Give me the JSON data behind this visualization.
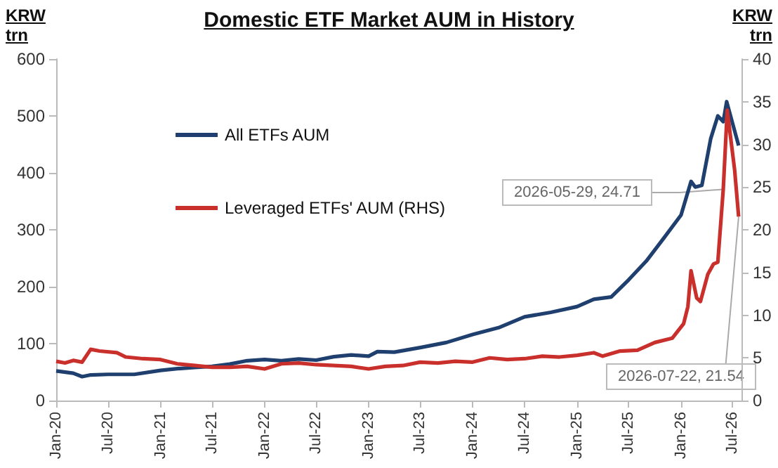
{
  "chart_data": {
    "type": "line",
    "title": "Domestic ETF Market AUM in History",
    "ylabel": "KRW trn",
    "y2label": "KRW trn",
    "xlim": [
      "2020-01-01",
      "2026-08-01"
    ],
    "xticks": [
      {
        "value": "2020-01",
        "label": "Jan-20"
      },
      {
        "value": "2020-07",
        "label": "Jul-20"
      },
      {
        "value": "2021-01",
        "label": "Jan-21"
      },
      {
        "value": "2021-07",
        "label": "Jul-21"
      },
      {
        "value": "2022-01",
        "label": "Jan-22"
      },
      {
        "value": "2022-07",
        "label": "Jul-22"
      },
      {
        "value": "2023-01",
        "label": "Jan-23"
      },
      {
        "value": "2023-07",
        "label": "Jul-23"
      },
      {
        "value": "2024-01",
        "label": "Jan-24"
      },
      {
        "value": "2024-07",
        "label": "Jul-24"
      },
      {
        "value": "2025-01",
        "label": "Jan-25"
      },
      {
        "value": "2025-07",
        "label": "Jul-25"
      },
      {
        "value": "2026-01",
        "label": "Jan-26"
      },
      {
        "value": "2026-07",
        "label": "Jul-26"
      }
    ],
    "ylim": [
      0,
      600
    ],
    "yticks": [
      0,
      100,
      200,
      300,
      400,
      500,
      600
    ],
    "y2lim": [
      0,
      40
    ],
    "y2ticks": [
      0,
      5,
      10,
      15,
      20,
      25,
      30,
      35,
      40
    ],
    "grid": false,
    "legend": "top left",
    "marker": "none",
    "line_style": "solid",
    "series": [
      {
        "name": "All ETFs AUM",
        "color": "#1f3f6e",
        "x": [
          "2020-01",
          "2020-03",
          "2020-04",
          "2020-05",
          "2020-07",
          "2020-10",
          "2021-01",
          "2021-03",
          "2021-05",
          "2021-07",
          "2021-09",
          "2021-11",
          "2022-01",
          "2022-03",
          "2022-05",
          "2022-07",
          "2022-09",
          "2022-11",
          "2023-01",
          "2023-02",
          "2023-04",
          "2023-07",
          "2023-10",
          "2024-01",
          "2024-04",
          "2024-07",
          "2024-10",
          "2025-01",
          "2025-03",
          "2025-05",
          "2025-07",
          "2025-09",
          "2025-11",
          "2026-01",
          "2026-02-05",
          "2026-02-20",
          "2026-03-15",
          "2026-04-15",
          "2026-05-10",
          "2026-05-29",
          "2026-06-10",
          "2026-07-22"
        ],
        "values": [
          52,
          48,
          42,
          45,
          46,
          46,
          53,
          56,
          58,
          60,
          64,
          70,
          72,
          70,
          73,
          71,
          77,
          80,
          78,
          86,
          85,
          93,
          102,
          116,
          128,
          147,
          155,
          165,
          178,
          182,
          212,
          245,
          285,
          326,
          385,
          375,
          378,
          460,
          500,
          490,
          525,
          448
        ]
      },
      {
        "name": "Leveraged ETFs' AUM (RHS)",
        "color": "#c9302c",
        "axis": "y2",
        "x": [
          "2020-01",
          "2020-02",
          "2020-03",
          "2020-04",
          "2020-05",
          "2020-06",
          "2020-08",
          "2020-09",
          "2020-11",
          "2021-01",
          "2021-03",
          "2021-05",
          "2021-07",
          "2021-09",
          "2021-11",
          "2022-01",
          "2022-03",
          "2022-05",
          "2022-07",
          "2022-09",
          "2022-11",
          "2023-01",
          "2023-03",
          "2023-05",
          "2023-07",
          "2023-09",
          "2023-11",
          "2024-01",
          "2024-03",
          "2024-05",
          "2024-07",
          "2024-09",
          "2024-11",
          "2025-01",
          "2025-03",
          "2025-04",
          "2025-06",
          "2025-08",
          "2025-10",
          "2025-12",
          "2026-01-10",
          "2026-01-25",
          "2026-02-05",
          "2026-02-25",
          "2026-03-10",
          "2026-04-05",
          "2026-04-25",
          "2026-05-10",
          "2026-05-29",
          "2026-06-12",
          "2026-06-25",
          "2026-07-08",
          "2026-07-22"
        ],
        "values": [
          4.6,
          4.4,
          4.7,
          4.5,
          6.0,
          5.8,
          5.6,
          5.1,
          4.9,
          4.8,
          4.3,
          4.1,
          3.9,
          3.9,
          4.0,
          3.7,
          4.3,
          4.4,
          4.2,
          4.1,
          4.0,
          3.7,
          4.0,
          4.1,
          4.5,
          4.4,
          4.6,
          4.5,
          5.0,
          4.8,
          4.9,
          5.2,
          5.1,
          5.3,
          5.6,
          5.2,
          5.8,
          5.9,
          6.8,
          7.3,
          9.0,
          11.0,
          15.2,
          12.0,
          11.6,
          14.8,
          16.0,
          16.2,
          24.71,
          34,
          30.5,
          27,
          21.54
        ]
      }
    ],
    "annotations": [
      {
        "text": "2026-05-29, 24.71",
        "x": "2026-05-29",
        "y": 371
      },
      {
        "text": "2026-07-22, 21.54",
        "x": "2026-07-22",
        "y": 323
      }
    ]
  }
}
